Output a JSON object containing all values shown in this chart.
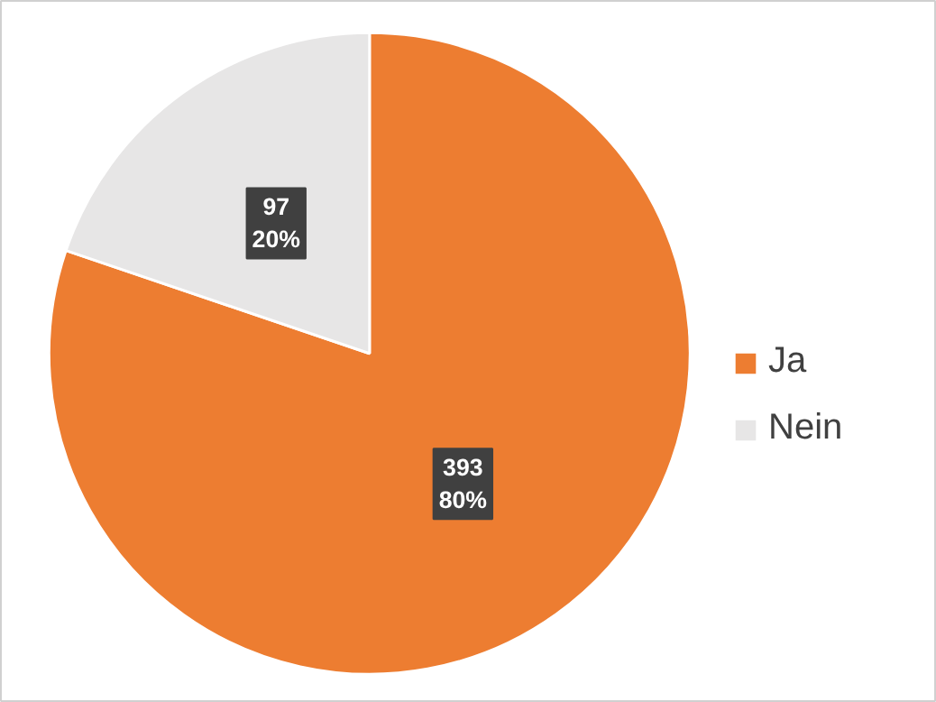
{
  "chart_data": {
    "type": "pie",
    "categories": [
      "Ja",
      "Nein"
    ],
    "values": [
      393,
      97
    ],
    "colors": [
      "#ed7d31",
      "#e7e6e6"
    ],
    "value_labels": [
      "393\n80%",
      "97\n20%"
    ],
    "legend": "right"
  }
}
